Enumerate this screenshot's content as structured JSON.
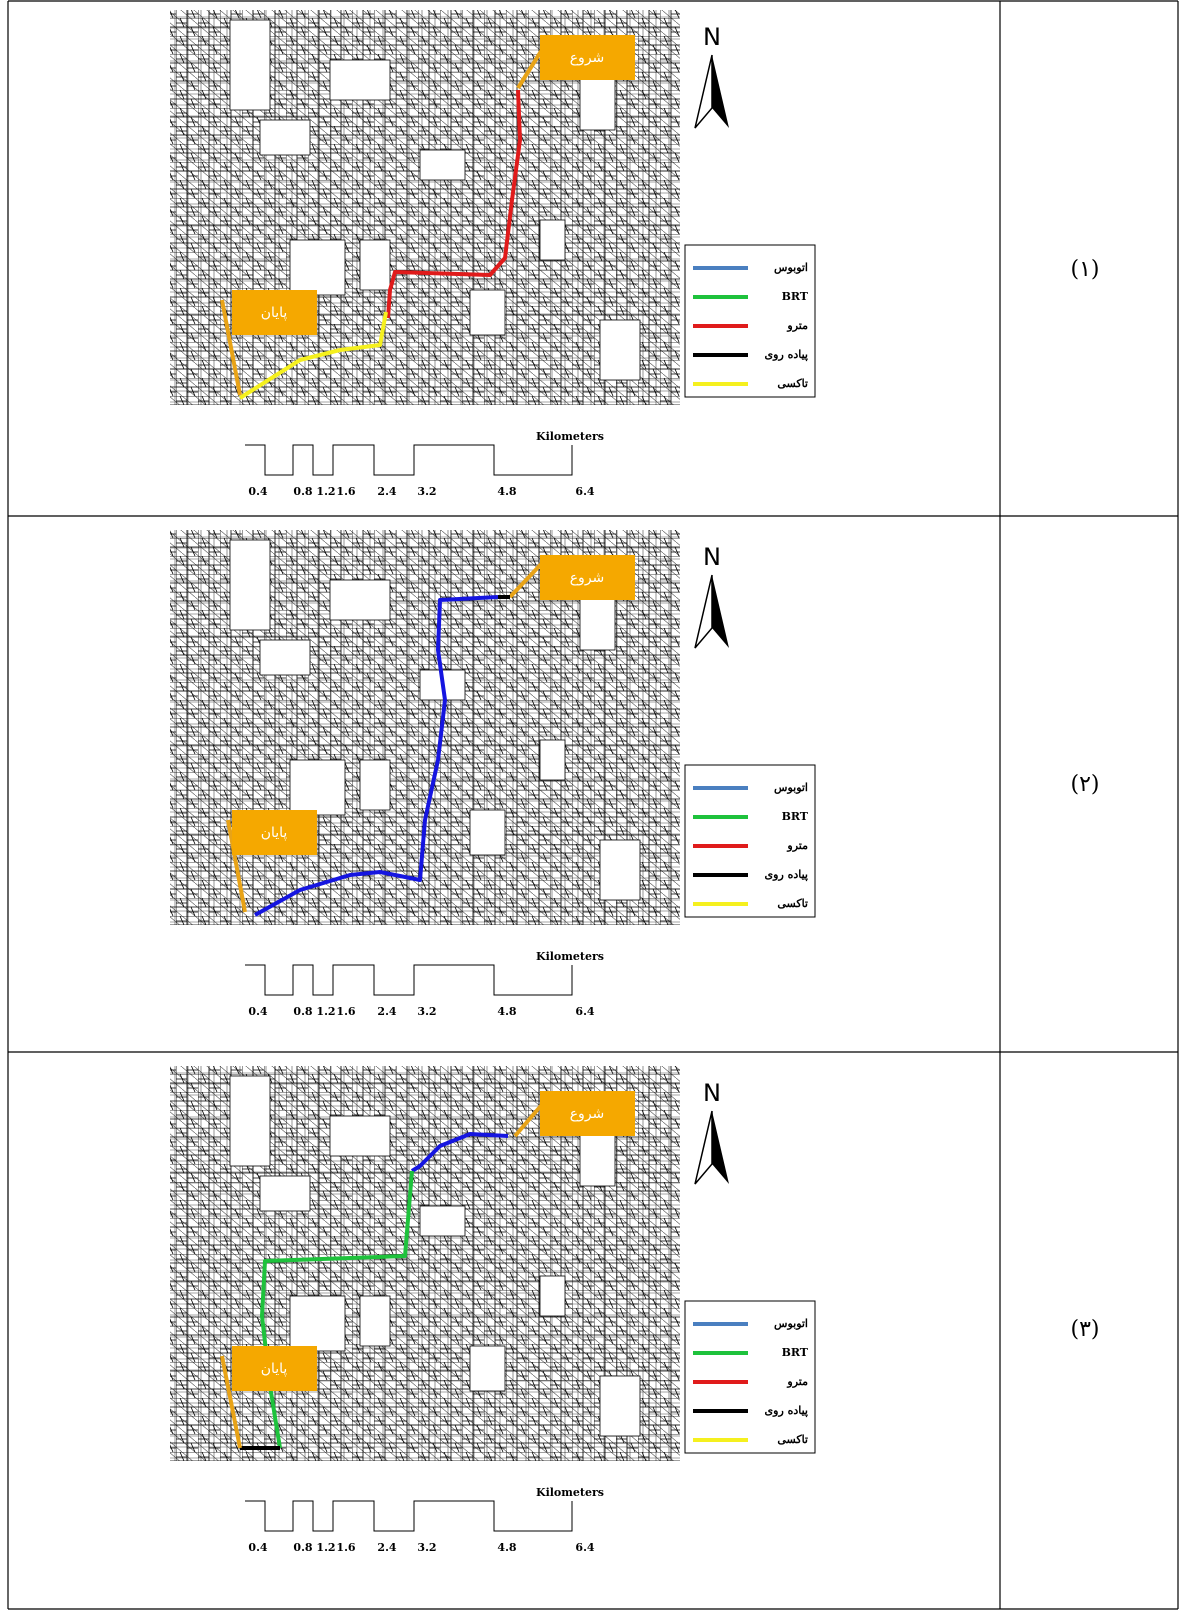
{
  "table": {
    "rows": [
      {
        "label": "(۱)"
      },
      {
        "label": "(۲)"
      },
      {
        "label": "(۳)"
      }
    ]
  },
  "map": {
    "start": "شروع",
    "end": "پایان",
    "north": "N",
    "legend": [
      {
        "name": "اتوبوس",
        "color": "#4a7fc0"
      },
      {
        "name": "BRT",
        "color": "#1ec23c"
      },
      {
        "name": "مترو",
        "color": "#e01b1b"
      },
      {
        "name": "پیاده روی",
        "color": "#000000"
      },
      {
        "name": "تاکسی",
        "color": "#f5f01e"
      }
    ],
    "scale": {
      "unit": "Kilometers",
      "ticks": [
        "0.4",
        "0.8",
        "1.2",
        "1.6",
        "2.4",
        "3.2",
        "4.8",
        "6.4"
      ]
    }
  }
}
